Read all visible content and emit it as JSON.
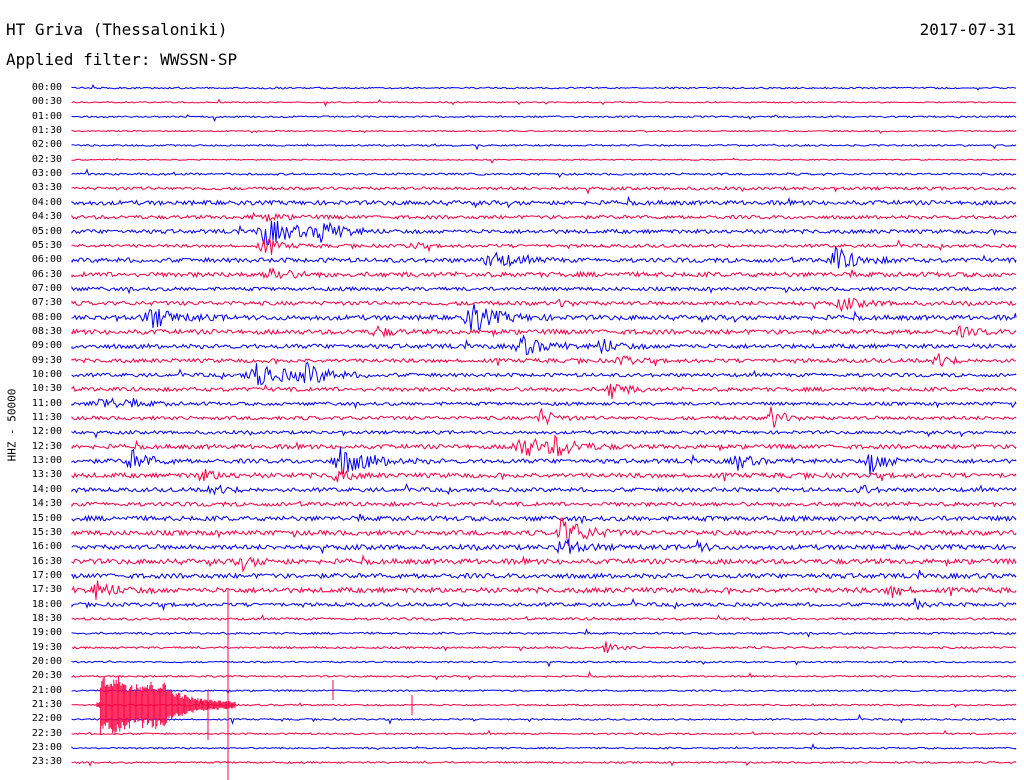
{
  "header": {
    "station": "HT Griva (Thessaloniki)",
    "date": "2017-07-31",
    "filter": "Applied filter: WWSSN-SP"
  },
  "axis_label": "HHZ - 50000",
  "colors": {
    "trace_even": "#0000ff",
    "trace_odd": "#ff0040",
    "background": "#ffffff",
    "text": "#000000"
  },
  "rows": [
    {
      "time": "00:00"
    },
    {
      "time": "00:30"
    },
    {
      "time": "01:00"
    },
    {
      "time": "01:30"
    },
    {
      "time": "02:00"
    },
    {
      "time": "02:30"
    },
    {
      "time": "03:00"
    },
    {
      "time": "03:30"
    },
    {
      "time": "04:00"
    },
    {
      "time": "04:30"
    },
    {
      "time": "05:00"
    },
    {
      "time": "05:30"
    },
    {
      "time": "06:00"
    },
    {
      "time": "06:30"
    },
    {
      "time": "07:00"
    },
    {
      "time": "07:30"
    },
    {
      "time": "08:00"
    },
    {
      "time": "08:30"
    },
    {
      "time": "09:00"
    },
    {
      "time": "09:30"
    },
    {
      "time": "10:00"
    },
    {
      "time": "10:30"
    },
    {
      "time": "11:00"
    },
    {
      "time": "11:30"
    },
    {
      "time": "12:00"
    },
    {
      "time": "12:30"
    },
    {
      "time": "13:00"
    },
    {
      "time": "13:30"
    },
    {
      "time": "14:00"
    },
    {
      "time": "14:30"
    },
    {
      "time": "15:00"
    },
    {
      "time": "15:30"
    },
    {
      "time": "16:00"
    },
    {
      "time": "16:30"
    },
    {
      "time": "17:00"
    },
    {
      "time": "17:30"
    },
    {
      "time": "18:00"
    },
    {
      "time": "18:30"
    },
    {
      "time": "19:00"
    },
    {
      "time": "19:30"
    },
    {
      "time": "20:00"
    },
    {
      "time": "20:30"
    },
    {
      "time": "21:00"
    },
    {
      "time": "21:30"
    },
    {
      "time": "22:00"
    },
    {
      "time": "22:30"
    },
    {
      "time": "23:00"
    },
    {
      "time": "23:30"
    }
  ]
}
